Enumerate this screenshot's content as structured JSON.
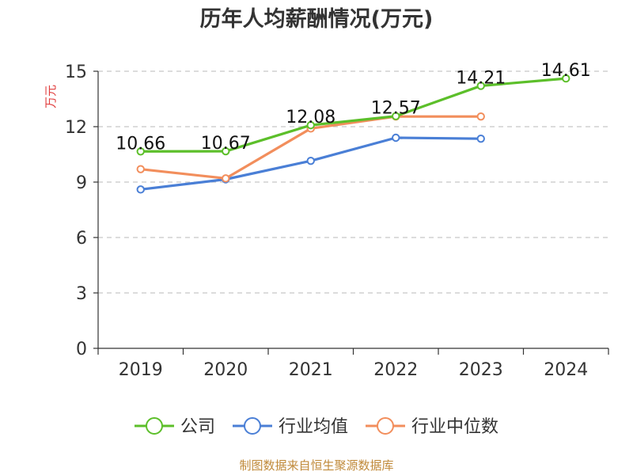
{
  "chart_data": {
    "type": "line",
    "title": "历年人均薪酬情况(万元)",
    "ylabel": "万元",
    "xlabel": "",
    "categories": [
      "2019",
      "2020",
      "2021",
      "2022",
      "2023",
      "2024"
    ],
    "ylim": [
      0,
      15
    ],
    "yticks": [
      0,
      3,
      6,
      9,
      12,
      15
    ],
    "grid": "horizontal-dashed",
    "legend_position": "bottom",
    "series": [
      {
        "name": "公司",
        "color": "#5cbf2a",
        "values": [
          10.66,
          10.67,
          12.08,
          12.57,
          14.21,
          14.61
        ],
        "labels": [
          "10.66",
          "10.67",
          "12.08",
          "12.57",
          "14.21",
          "14.61"
        ]
      },
      {
        "name": "行业均值",
        "color": "#4a7fd6",
        "values": [
          8.6,
          9.15,
          10.15,
          11.4,
          11.35,
          null
        ]
      },
      {
        "name": "行业中位数",
        "color": "#f28e5c",
        "values": [
          9.7,
          9.2,
          11.9,
          12.55,
          12.55,
          null
        ]
      }
    ]
  },
  "footer": {
    "source": "制图数据来自恒生聚源数据库"
  }
}
